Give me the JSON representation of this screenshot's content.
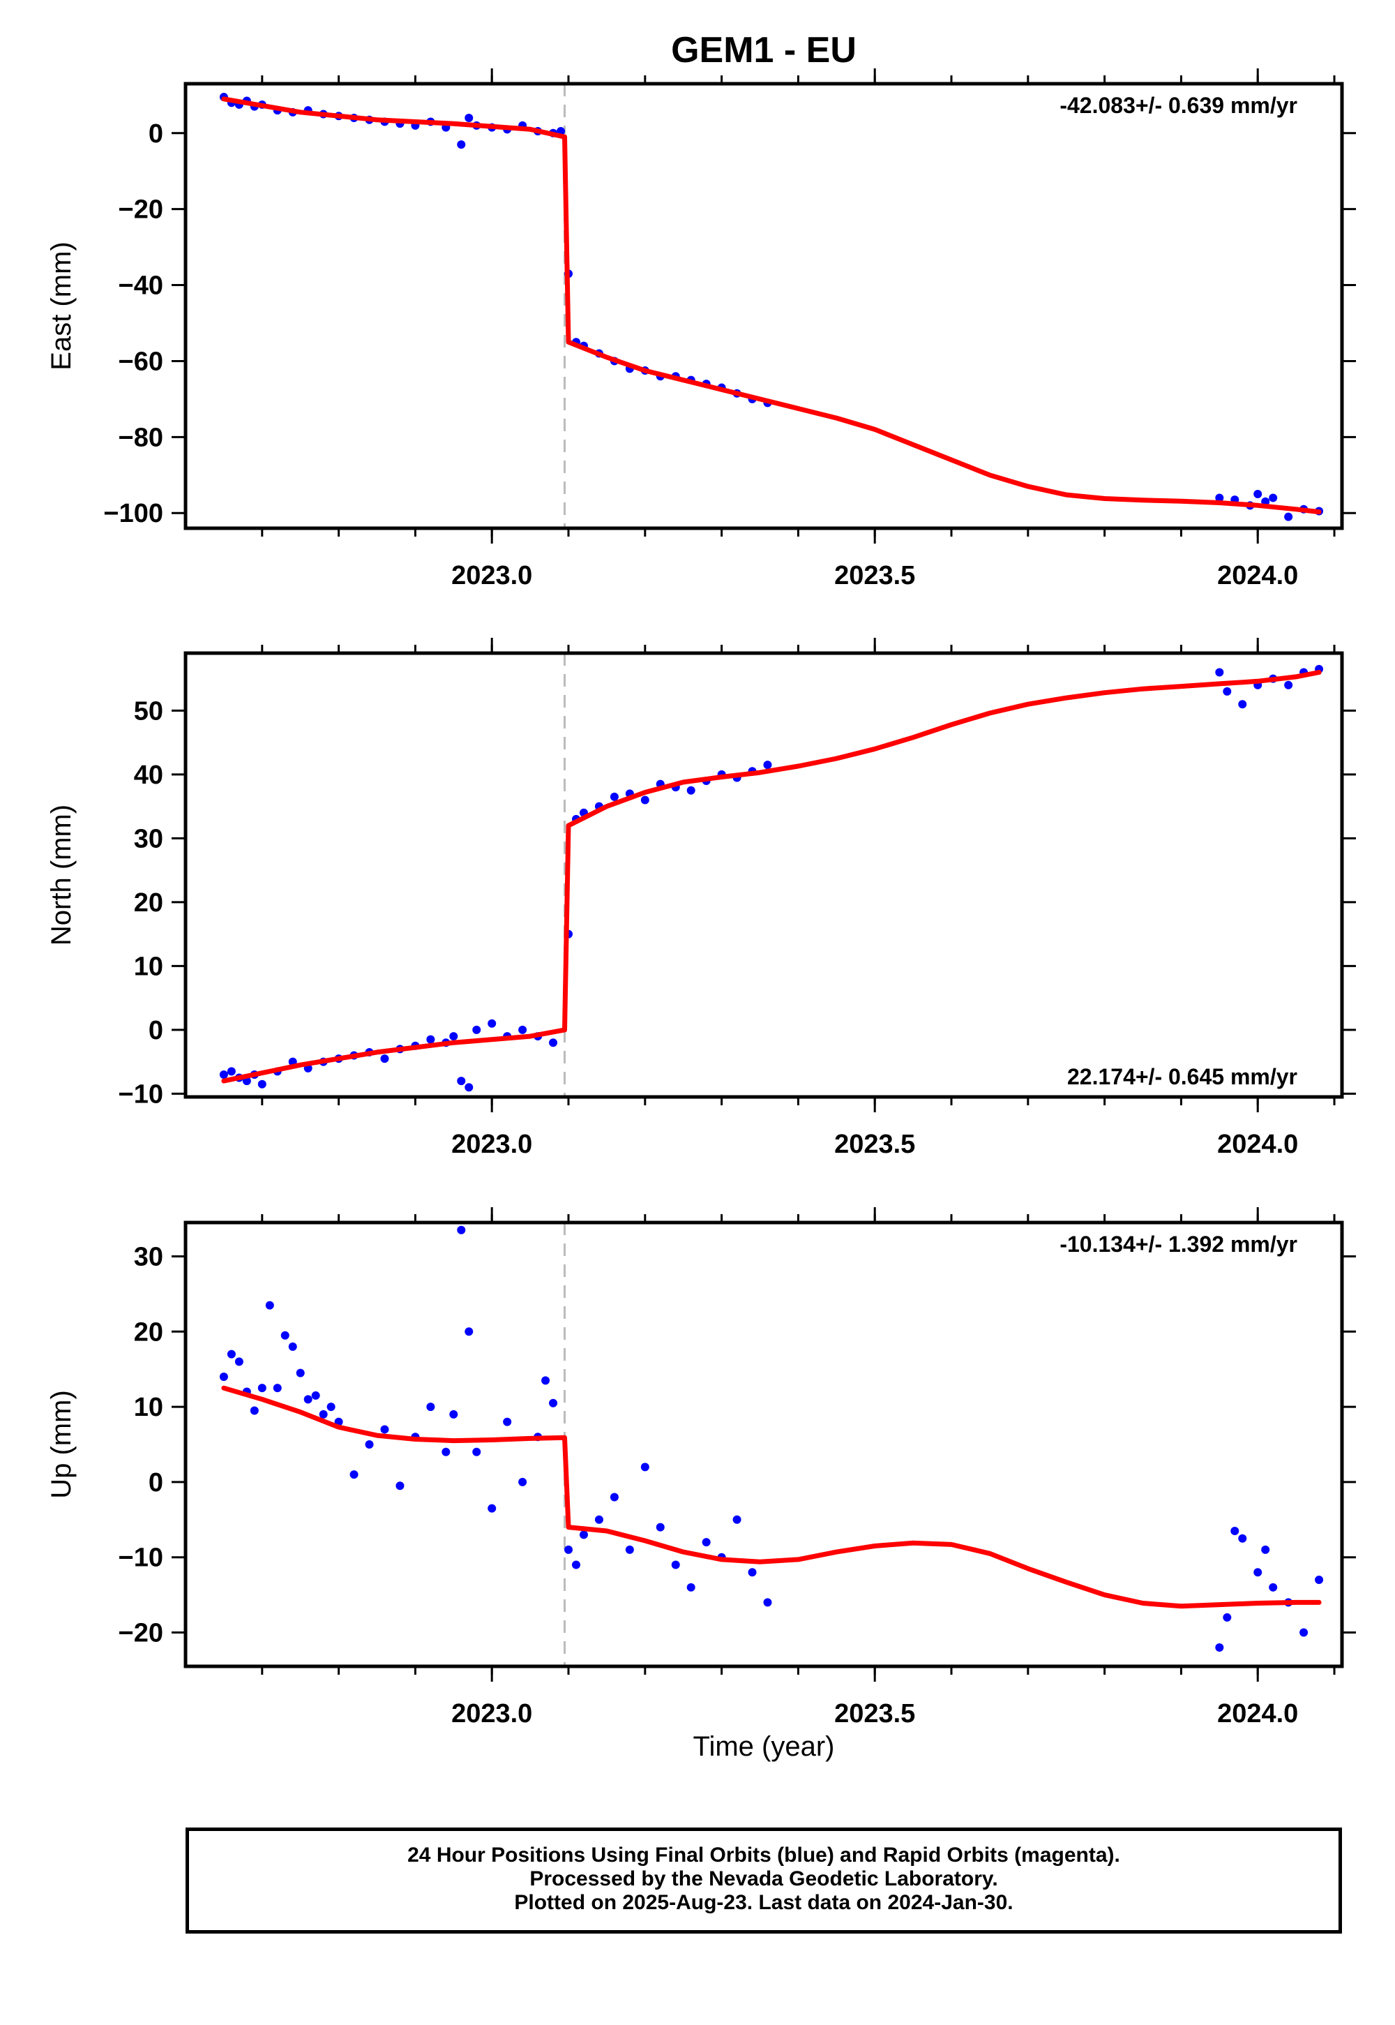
{
  "title": "GEM1 - EU",
  "colors": {
    "data": "#0000ff",
    "model": "#ff0000",
    "event_line": "#bbbbbb",
    "axis": "#000000"
  },
  "xlabel": "Time (year)",
  "footer": {
    "line1": "24 Hour Positions Using Final Orbits (blue) and Rapid Orbits (magenta).",
    "line2": "Processed by the Nevada Geodetic Laboratory.",
    "line3": "Plotted on 2025-Aug-23. Last data on 2024-Jan-30."
  },
  "chart_data": [
    {
      "type": "scatter",
      "component": "east",
      "ylabel": "East (mm)",
      "rate_label": "-42.083+/- 0.639 mm/yr",
      "xlim": [
        2022.6,
        2024.11
      ],
      "ylim": [
        -104,
        13
      ],
      "xticks": [
        2023.0,
        2023.5,
        2024.0
      ],
      "xtick_labels": [
        "2023.0",
        "2023.5",
        "2024.0"
      ],
      "yticks": [
        0,
        -20,
        -40,
        -60,
        -80,
        -100
      ],
      "ytick_labels": [
        "0",
        "−20",
        "−40",
        "−60",
        "−80",
        "−100"
      ],
      "event_x": 2023.095,
      "series": [
        {
          "name": "Final Orbits (blue)",
          "role": "data",
          "x": [
            2022.65,
            2022.66,
            2022.67,
            2022.68,
            2022.69,
            2022.7,
            2022.72,
            2022.74,
            2022.76,
            2022.78,
            2022.8,
            2022.82,
            2022.84,
            2022.86,
            2022.88,
            2022.9,
            2022.92,
            2022.94,
            2022.96,
            2022.97,
            2022.98,
            2023.0,
            2023.02,
            2023.04,
            2023.06,
            2023.08,
            2023.09,
            2023.1,
            2023.11,
            2023.12,
            2023.14,
            2023.16,
            2023.18,
            2023.2,
            2023.22,
            2023.24,
            2023.26,
            2023.28,
            2023.3,
            2023.32,
            2023.34,
            2023.36,
            2023.95,
            2023.97,
            2023.99,
            2024.0,
            2024.01,
            2024.02,
            2024.04,
            2024.06,
            2024.08
          ],
          "y": [
            9.5,
            8,
            7.5,
            8.5,
            7,
            7.5,
            6,
            5.5,
            6,
            5,
            4.5,
            4,
            3.5,
            3,
            2.5,
            2,
            3,
            1.5,
            -3,
            4,
            2,
            1.5,
            1,
            2,
            0.5,
            0,
            0.5,
            -37,
            -55,
            -56,
            -58,
            -60,
            -62,
            -62.5,
            -64,
            -64,
            -65,
            -66,
            -67,
            -68.5,
            -70,
            -71,
            -96,
            -96.5,
            -98,
            -95,
            -97,
            -96,
            -101,
            -99,
            -99.5
          ]
        },
        {
          "name": "",
          "role": "model",
          "x": [
            2022.65,
            2022.75,
            2022.85,
            2022.95,
            2023.05,
            2023.095,
            2023.1,
            2023.15,
            2023.2,
            2023.25,
            2023.3,
            2023.35,
            2023.4,
            2023.45,
            2023.5,
            2023.55,
            2023.6,
            2023.65,
            2023.7,
            2023.75,
            2023.8,
            2023.85,
            2023.9,
            2023.95,
            2024.0,
            2024.05,
            2024.08
          ],
          "y": [
            9,
            5.5,
            3.5,
            2.5,
            1,
            -1,
            -55,
            -59,
            -62.5,
            -65,
            -67.5,
            -70,
            -72.5,
            -75,
            -78,
            -82,
            -86,
            -90,
            -93,
            -95.2,
            -96.2,
            -96.6,
            -96.9,
            -97.3,
            -98,
            -99,
            -99.7
          ]
        }
      ]
    },
    {
      "type": "scatter",
      "component": "north",
      "ylabel": "North (mm)",
      "rate_label": "22.174+/- 0.645 mm/yr",
      "xlim": [
        2022.6,
        2024.11
      ],
      "ylim": [
        -10.5,
        59
      ],
      "xticks": [
        2023.0,
        2023.5,
        2024.0
      ],
      "xtick_labels": [
        "2023.0",
        "2023.5",
        "2024.0"
      ],
      "yticks": [
        50,
        40,
        30,
        20,
        10,
        0,
        -10
      ],
      "ytick_labels": [
        "50",
        "40",
        "30",
        "20",
        "10",
        "0",
        "−10"
      ],
      "event_x": 2023.095,
      "series": [
        {
          "name": "Final Orbits (blue)",
          "role": "data",
          "x": [
            2022.65,
            2022.66,
            2022.67,
            2022.68,
            2022.69,
            2022.7,
            2022.72,
            2022.74,
            2022.76,
            2022.78,
            2022.8,
            2022.82,
            2022.84,
            2022.86,
            2022.88,
            2022.9,
            2022.92,
            2022.94,
            2022.95,
            2022.96,
            2022.97,
            2022.98,
            2023.0,
            2023.02,
            2023.04,
            2023.06,
            2023.08,
            2023.1,
            2023.11,
            2023.12,
            2023.14,
            2023.16,
            2023.18,
            2023.2,
            2023.22,
            2023.24,
            2023.26,
            2023.28,
            2023.3,
            2023.32,
            2023.34,
            2023.36,
            2023.95,
            2023.96,
            2023.98,
            2024.0,
            2024.02,
            2024.04,
            2024.06,
            2024.08
          ],
          "y": [
            -7,
            -6.5,
            -7.5,
            -8,
            -7,
            -8.5,
            -6.5,
            -5,
            -6,
            -5,
            -4.5,
            -4,
            -3.5,
            -4.5,
            -3,
            -2.5,
            -1.5,
            -2,
            -1,
            -8,
            -9,
            0,
            1,
            -1,
            0,
            -1,
            -2,
            15,
            33,
            34,
            35,
            36.5,
            37,
            36,
            38.5,
            38,
            37.5,
            39,
            40,
            39.5,
            40.5,
            41.5,
            56,
            53,
            51,
            54,
            55,
            54,
            56,
            56.5
          ]
        },
        {
          "name": "",
          "role": "model",
          "x": [
            2022.65,
            2022.75,
            2022.85,
            2022.95,
            2023.05,
            2023.095,
            2023.1,
            2023.15,
            2023.2,
            2023.25,
            2023.3,
            2023.35,
            2023.4,
            2023.45,
            2023.5,
            2023.55,
            2023.6,
            2023.65,
            2023.7,
            2023.75,
            2023.8,
            2023.85,
            2023.9,
            2023.95,
            2024.0,
            2024.05,
            2024.08
          ],
          "y": [
            -8,
            -5.5,
            -3.5,
            -2,
            -1,
            0,
            32,
            35,
            37.2,
            38.8,
            39.6,
            40.3,
            41.3,
            42.5,
            44,
            45.8,
            47.8,
            49.6,
            51,
            52,
            52.8,
            53.4,
            53.8,
            54.2,
            54.6,
            55.3,
            56
          ]
        }
      ]
    },
    {
      "type": "scatter",
      "component": "up",
      "ylabel": "Up (mm)",
      "rate_label": "-10.134+/- 1.392 mm/yr",
      "xlim": [
        2022.6,
        2024.11
      ],
      "ylim": [
        -24.5,
        34.5
      ],
      "xticks": [
        2023.0,
        2023.5,
        2024.0
      ],
      "xtick_labels": [
        "2023.0",
        "2023.5",
        "2024.0"
      ],
      "yticks": [
        30,
        20,
        10,
        0,
        -10,
        -20
      ],
      "ytick_labels": [
        "30",
        "20",
        "10",
        "0",
        "−10",
        "−20"
      ],
      "event_x": 2023.095,
      "series": [
        {
          "name": "Final Orbits (blue)",
          "role": "data",
          "x": [
            2022.65,
            2022.66,
            2022.67,
            2022.68,
            2022.69,
            2022.7,
            2022.71,
            2022.72,
            2022.73,
            2022.74,
            2022.75,
            2022.76,
            2022.77,
            2022.78,
            2022.79,
            2022.8,
            2022.82,
            2022.84,
            2022.86,
            2022.88,
            2022.9,
            2022.92,
            2022.94,
            2022.95,
            2022.96,
            2022.97,
            2022.98,
            2023.0,
            2023.02,
            2023.04,
            2023.06,
            2023.07,
            2023.08,
            2023.1,
            2023.11,
            2023.12,
            2023.14,
            2023.16,
            2023.18,
            2023.2,
            2023.22,
            2023.24,
            2023.26,
            2023.28,
            2023.3,
            2023.32,
            2023.34,
            2023.36,
            2023.95,
            2023.96,
            2023.97,
            2023.98,
            2024.0,
            2024.01,
            2024.02,
            2024.04,
            2024.06,
            2024.08
          ],
          "y": [
            14,
            17,
            16,
            12,
            9.5,
            12.5,
            23.5,
            12.5,
            19.5,
            18,
            14.5,
            11,
            11.5,
            9,
            10,
            8,
            1,
            5,
            7,
            -0.5,
            6,
            10,
            4,
            9,
            33.5,
            20,
            4,
            -3.5,
            8,
            0,
            6,
            13.5,
            10.5,
            -9,
            -11,
            -7,
            -5,
            -2,
            -9,
            2,
            -6,
            -11,
            -14,
            -8,
            -10,
            -5,
            -12,
            -16,
            -22,
            -18,
            -6.5,
            -7.5,
            -12,
            -9,
            -14,
            -16,
            -20,
            -13
          ]
        },
        {
          "name": "",
          "role": "model",
          "x": [
            2022.65,
            2022.7,
            2022.75,
            2022.8,
            2022.85,
            2022.9,
            2022.95,
            2023.0,
            2023.05,
            2023.095,
            2023.1,
            2023.15,
            2023.2,
            2023.25,
            2023.3,
            2023.35,
            2023.4,
            2023.45,
            2023.5,
            2023.55,
            2023.6,
            2023.65,
            2023.7,
            2023.75,
            2023.8,
            2023.85,
            2023.9,
            2023.95,
            2024.0,
            2024.05,
            2024.08
          ],
          "y": [
            12.5,
            11,
            9.3,
            7.3,
            6.2,
            5.7,
            5.5,
            5.6,
            5.8,
            5.9,
            -6,
            -6.5,
            -7.8,
            -9.3,
            -10.3,
            -10.6,
            -10.3,
            -9.3,
            -8.5,
            -8.1,
            -8.3,
            -9.5,
            -11.5,
            -13.3,
            -15.0,
            -16.1,
            -16.5,
            -16.3,
            -16.1,
            -16.0,
            -16.0
          ]
        }
      ]
    }
  ]
}
